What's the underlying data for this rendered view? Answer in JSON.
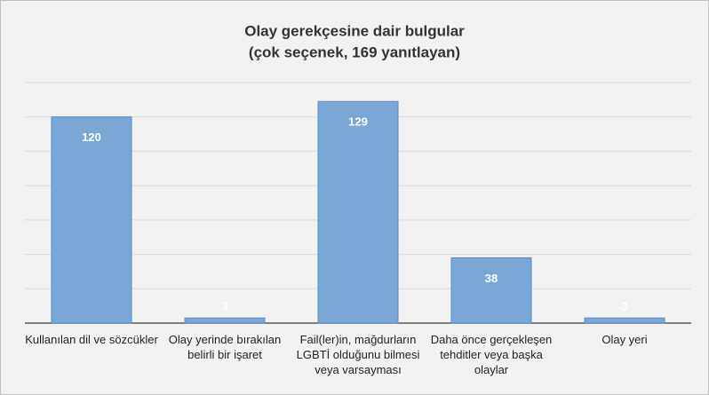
{
  "chart_data": {
    "type": "bar",
    "title": "Olay gerekçesine dair bulgular",
    "subtitle": "(çok seçenek, 169 yanıtlayan)",
    "categories": [
      "Kullanılan dil ve sözcükler",
      "Olay yerinde bırakılan belirli bir işaret",
      "Fail(ler)in, mağdurların LGBTİ olduğunu bilmesi veya varsayması",
      "Daha önce gerçekleşen tehditler veya başka olaylar",
      "Olay yeri"
    ],
    "values": [
      120,
      3,
      129,
      38,
      3
    ],
    "color": "#7ba7d7",
    "ylim": [
      0,
      140
    ],
    "yticks": [
      0,
      20,
      40,
      60,
      80,
      100,
      120,
      140
    ],
    "grid": true
  }
}
